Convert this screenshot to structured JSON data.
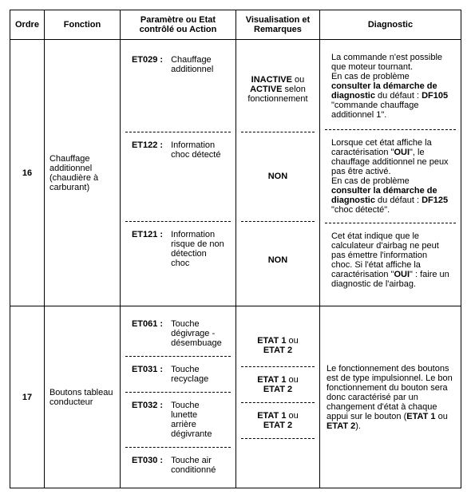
{
  "headers": {
    "ordre": "Ordre",
    "fonction": "Fonction",
    "param": "Paramètre ou Etat contrôlé ou Action",
    "visu": "Visualisation et Remarques",
    "diag": "Diagnostic"
  },
  "row16": {
    "ordre": "16",
    "fonction": "Chauffage additionnel (chaudière à carburant)",
    "segs": [
      {
        "code": "ET029 :",
        "text": "Chauffage additionnel",
        "visu_pre": "",
        "visu_b1": "INACTIVE",
        "visu_mid": " ou ",
        "visu_b2": "ACTIVE",
        "visu_post": " selon fonctionnement",
        "diag_p1": "La commande n'est possible que moteur tournant.",
        "diag_p2a": "En cas de problème ",
        "diag_p2b": "consulter la démarche de diagnostic",
        "diag_p2c": " du défaut : ",
        "diag_p2d": "DF105",
        "diag_p2e": " \"commande chauffage additionnel 1\"."
      },
      {
        "code": "ET122 :",
        "text": "Information choc détecté",
        "visu_b": "NON",
        "diag_p1a": "Lorsque cet état affiche la caractérisation \"",
        "diag_p1b": "OUI",
        "diag_p1c": "\", le chauffage additionnel ne peux pas être activé.",
        "diag_p2a": "En cas de problème ",
        "diag_p2b": "consulter la démarche de diagnostic",
        "diag_p2c": " du défaut : ",
        "diag_p2d": "DF125",
        "diag_p2e": " \"choc détecté\"."
      },
      {
        "code": "ET121 :",
        "text": "Information risque de non détection choc",
        "visu_b": "NON",
        "diag_a": "Cet état indique que le calculateur d'airbag ne peut pas émettre l'information choc. Si l'état affiche la caractérisation \"",
        "diag_b": "OUI",
        "diag_c": "\" : faire un diagnostic de l'airbag."
      }
    ]
  },
  "row17": {
    "ordre": "17",
    "fonction": "Boutons tableau conducteur",
    "segs": [
      {
        "code": "ET061 :",
        "text": "Touche dégivrage - désembuage",
        "visu_b1": "ETAT 1",
        "visu_mid": " ou ",
        "visu_b2": "ETAT 2"
      },
      {
        "code": "ET031 :",
        "text": "Touche recyclage",
        "visu_b1": "ETAT 1",
        "visu_mid": " ou ",
        "visu_b2": "ETAT 2"
      },
      {
        "code": "ET032 :",
        "text": "Touche lunette arrière dégivrante",
        "visu_b1": "ETAT 1",
        "visu_mid": " ou ",
        "visu_b2": "ETAT 2"
      },
      {
        "code": "ET030 :",
        "text": "Touche air conditionné",
        "visu_b1": "",
        "visu_mid": "",
        "visu_b2": ""
      }
    ],
    "diag_a": "Le fonctionnement des boutons est de type impulsionnel. Le bon fonctionnement du bouton sera donc caractérisé par un changement d'état à chaque appui sur le bouton (",
    "diag_b1": "ETAT 1",
    "diag_mid": " ou ",
    "diag_b2": "ETAT 2",
    "diag_c": ")."
  }
}
